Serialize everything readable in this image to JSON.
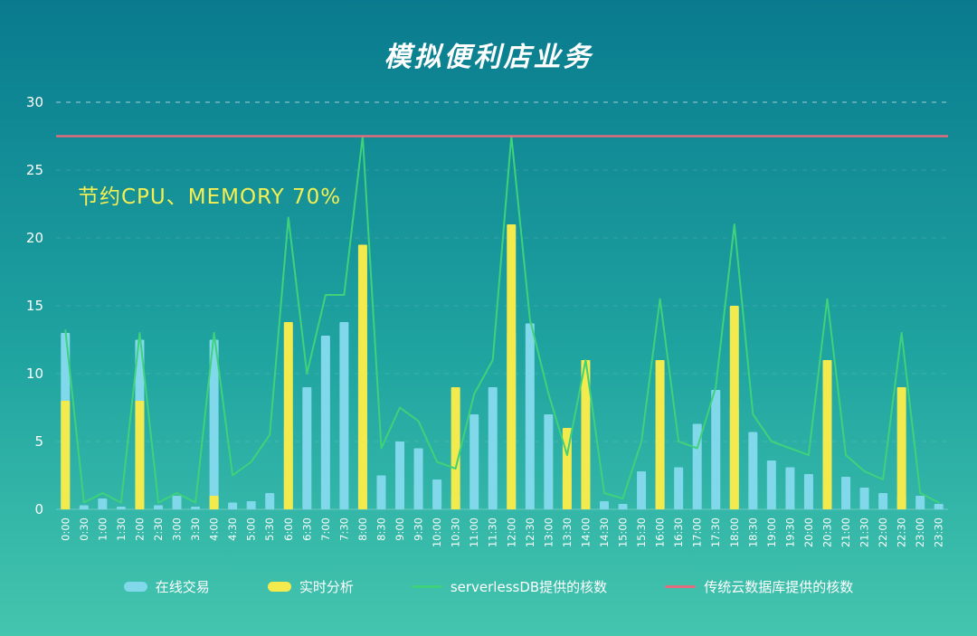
{
  "page": {
    "title": "模拟便利店业务",
    "annotation": "节约CPU、MEMORY 70%"
  },
  "colors": {
    "background_top": "#097b8e",
    "background_mid": "#1fa3a0",
    "background_bottom": "#44c5ae",
    "bar_online": "#80d8ea",
    "bar_analysis": "#f3ea4d",
    "line_serverless": "#3ed27a",
    "line_traditional": "#e06c7d",
    "annotation": "#f6ef52",
    "axis_text": "#ffffff"
  },
  "legend": [
    {
      "label": "在线交易",
      "type": "bar",
      "color": "#80d8ea"
    },
    {
      "label": "实时分析",
      "type": "bar",
      "color": "#f3ea4d"
    },
    {
      "label": "serverlessDB提供的核数",
      "type": "line",
      "color": "#3ed27a"
    },
    {
      "label": "传统云数据库提供的核数",
      "type": "line",
      "color": "#e06c7d"
    }
  ],
  "chart_data": {
    "type": "bar",
    "title": "模拟便利店业务",
    "stacked": false,
    "overlay_note": "yellow analysis bars are drawn in front of blue transaction bars at the same x position",
    "xlabel": "",
    "ylabel": "",
    "ylim": [
      0,
      30
    ],
    "yticks": [
      0,
      5,
      10,
      15,
      20,
      25,
      30
    ],
    "grid": "dashed horizontal, prominent at 30",
    "legend_position": "bottom",
    "categories": [
      "0:00",
      "0:30",
      "1:00",
      "1:30",
      "2:00",
      "2:30",
      "3:00",
      "3:30",
      "4:00",
      "4:30",
      "5:00",
      "5:30",
      "6:00",
      "6:30",
      "7:00",
      "7:30",
      "8:00",
      "8:30",
      "9:00",
      "9:30",
      "10:00",
      "10:30",
      "11:00",
      "11:30",
      "12:00",
      "12:30",
      "13:00",
      "13:30",
      "14:00",
      "14:30",
      "15:00",
      "15:30",
      "16:00",
      "16:30",
      "17:00",
      "17:30",
      "18:00",
      "18:30",
      "19:00",
      "19:30",
      "20:00",
      "20:30",
      "21:00",
      "21:30",
      "22:00",
      "22:30",
      "23:00",
      "23:30"
    ],
    "series": [
      {
        "name": "在线交易",
        "type": "bar",
        "color": "#80d8ea",
        "values": [
          13,
          0.3,
          0.8,
          0.2,
          12.5,
          0.3,
          1,
          0.2,
          12.5,
          0.5,
          0.6,
          1.2,
          6,
          9,
          12.8,
          13.8,
          12.4,
          2.5,
          5,
          4.5,
          2.2,
          1,
          7,
          9,
          13,
          13.7,
          7,
          2.5,
          5.5,
          0.6,
          0.4,
          2.8,
          3,
          3.1,
          6.3,
          8.8,
          7.5,
          5.7,
          3.6,
          3.1,
          2.6,
          2,
          2.4,
          1.6,
          1.2,
          1,
          1,
          0.4
        ]
      },
      {
        "name": "实时分析",
        "type": "bar",
        "color": "#f3ea4d",
        "values": [
          8,
          0,
          0,
          0,
          8,
          0,
          0,
          0,
          1,
          0,
          0,
          0,
          13.8,
          0,
          0,
          0,
          19.5,
          0,
          0,
          0,
          0,
          9,
          0,
          0,
          21,
          0,
          0,
          6,
          11,
          0,
          0,
          0,
          11,
          0,
          0,
          0,
          15,
          0,
          0,
          0,
          0,
          11,
          0,
          0,
          0,
          9,
          0,
          0
        ]
      },
      {
        "name": "serverlessDB提供的核数",
        "type": "line",
        "color": "#3ed27a",
        "values": [
          13.2,
          0.5,
          1.2,
          0.5,
          13,
          0.5,
          1.2,
          0.5,
          13,
          2.5,
          3.5,
          5.5,
          21.5,
          10,
          15.8,
          15.8,
          27.5,
          4.5,
          7.5,
          6.5,
          3.5,
          3,
          8.5,
          11,
          27.5,
          14,
          8.5,
          4,
          11,
          1.2,
          0.8,
          5,
          15.5,
          5,
          4.5,
          9,
          21,
          7,
          5,
          4.5,
          4,
          15.5,
          4,
          2.8,
          2.2,
          13,
          1.2,
          0.5
        ]
      },
      {
        "name": "传统云数据库提供的核数",
        "type": "line",
        "color": "#e06c7d",
        "constant": 27.5
      }
    ]
  }
}
